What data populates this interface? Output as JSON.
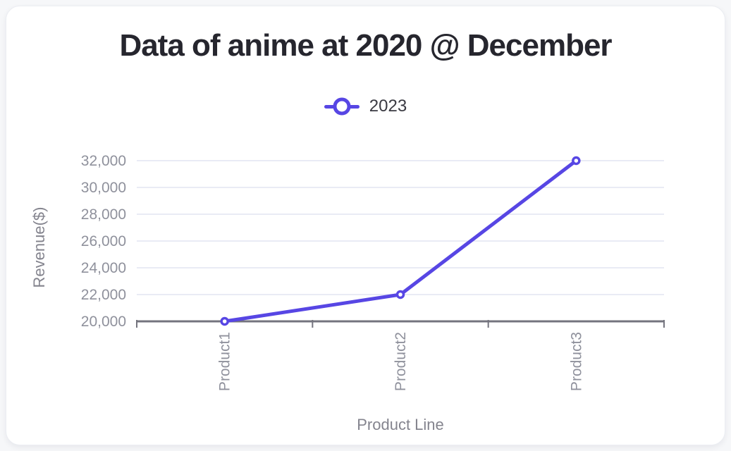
{
  "chart_data": {
    "type": "line",
    "title": "Data of anime at 2020 @ December",
    "categories": [
      "Product1",
      "Product2",
      "Product3"
    ],
    "series": [
      {
        "name": "2023",
        "values": [
          20000,
          22000,
          32000
        ]
      }
    ],
    "xlabel": "Product Line",
    "ylabel": "Revenue($)",
    "ylim": [
      20000,
      32000
    ],
    "ytick_step": 2000,
    "ytick_labels": [
      "20,000",
      "22,000",
      "24,000",
      "26,000",
      "28,000",
      "30,000",
      "32,000"
    ],
    "grid": "horizontal-only",
    "legend_position": "top-center",
    "marker_style": "hollow-circle"
  },
  "colors": {
    "line": "#5746e4",
    "marker_fill": "#ffffff",
    "gridline": "#e9ebf5",
    "axis": "#74747e",
    "tick_text": "#8f919c",
    "axis_title_text": "#84848e",
    "title_text": "#26262e",
    "legend_text": "#3a3a42",
    "card_background": "#ffffff",
    "page_background": "#f6f7f9"
  }
}
